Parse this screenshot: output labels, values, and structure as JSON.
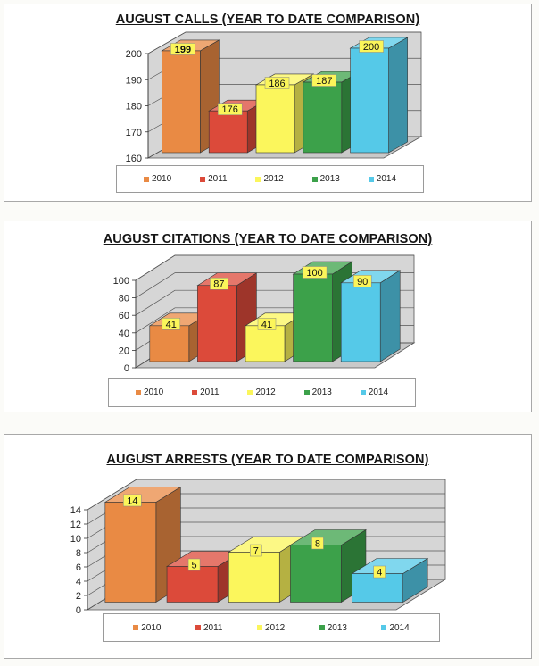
{
  "colors": {
    "2010": "#e98a44",
    "2011": "#dc4a3a",
    "2012": "#fbf65c",
    "2013": "#3ca14a",
    "2014": "#55c9e8",
    "wall": "#d6d6d6",
    "floor": "#c9c9c9",
    "label_bg": "#fbf55a"
  },
  "chart_data": [
    {
      "type": "bar",
      "title": "AUGUST CALLS (YEAR TO DATE COMPARISON)",
      "categories": [
        "2010",
        "2011",
        "2012",
        "2013",
        "2014"
      ],
      "values": [
        199,
        176,
        186,
        187,
        200
      ],
      "yticks": [
        "160",
        "170",
        "180",
        "190",
        "200"
      ],
      "ylim": [
        160,
        200
      ],
      "legend": [
        "2010",
        "2011",
        "2012",
        "2013",
        "2014"
      ],
      "legend_position": "bottom",
      "grid": true,
      "three_d": true
    },
    {
      "type": "bar",
      "title": "AUGUST CITATIONS (YEAR TO DATE COMPARISON)",
      "categories": [
        "2010",
        "2011",
        "2012",
        "2013",
        "2014"
      ],
      "values": [
        41,
        87,
        41,
        100,
        90
      ],
      "yticks": [
        "0",
        "20",
        "40",
        "60",
        "80",
        "100"
      ],
      "ylim": [
        0,
        100
      ],
      "legend": [
        "2010",
        "2011",
        "2012",
        "2013",
        "2014"
      ],
      "legend_position": "bottom",
      "grid": true,
      "three_d": true
    },
    {
      "type": "bar",
      "title": "AUGUST ARRESTS (YEAR TO DATE COMPARISON)",
      "categories": [
        "2010",
        "2011",
        "2012",
        "2013",
        "2014"
      ],
      "values": [
        14,
        5,
        7,
        8,
        4
      ],
      "yticks": [
        "0",
        "2",
        "4",
        "6",
        "8",
        "10",
        "12",
        "14"
      ],
      "ylim": [
        0,
        14
      ],
      "legend": [
        "2010",
        "2011",
        "2012",
        "2013",
        "2014"
      ],
      "legend_position": "bottom",
      "grid": true,
      "three_d": true
    }
  ]
}
